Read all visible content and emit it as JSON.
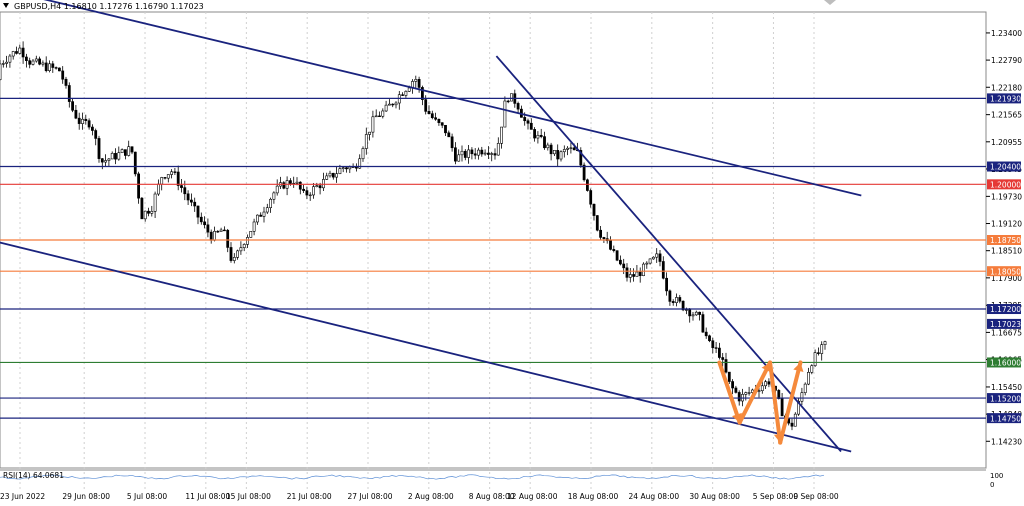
{
  "chart_data": {
    "type": "candlestick",
    "title": "GBPUSD,H4  1.16810 1.17276 1.16790 1.17023",
    "symbol": "GBPUSD",
    "timeframe": "H4",
    "ohlc": {
      "open": 1.1681,
      "high": 1.17276,
      "low": 1.1679,
      "close": 1.17023
    },
    "current_price_label": "1.17023",
    "ylim": [
      1.1363,
      1.2387
    ],
    "y_ticks": [
      "1.23400",
      "1.22790",
      "1.22180",
      "1.21565",
      "1.20955",
      "1.20345",
      "1.19730",
      "1.19120",
      "1.18510",
      "1.17900",
      "1.17285",
      "1.16675",
      "1.16065",
      "1.15450",
      "1.14840",
      "1.14230"
    ],
    "x_ticks": [
      "23 Jun 2022",
      "29 Jun 08:00",
      "5 Jul 08:00",
      "11 Jul 08:00",
      "15 Jul 08:00",
      "21 Jul 08:00",
      "27 Jul 08:00",
      "2 Aug 08:00",
      "8 Aug 08:00",
      "12 Aug 08:00",
      "18 Aug 08:00",
      "24 Aug 08:00",
      "30 Aug 08:00",
      "5 Sep 08:00",
      "9 Sep 08:00"
    ],
    "grid": true,
    "horizontal_levels": [
      {
        "label": "1.21930",
        "value": 1.2193,
        "color": "#1a237e"
      },
      {
        "label": "1.20400",
        "value": 1.204,
        "color": "#1a237e"
      },
      {
        "label": "1.20000",
        "value": 1.2,
        "color": "#e53935"
      },
      {
        "label": "1.18750",
        "value": 1.1875,
        "color": "#f57c3c"
      },
      {
        "label": "1.18050",
        "value": 1.1805,
        "color": "#f57c3c"
      },
      {
        "label": "1.17200",
        "value": 1.172,
        "color": "#1a237e"
      },
      {
        "label": "1.16000",
        "value": 1.16,
        "color": "#2e7d32"
      },
      {
        "label": "1.15200",
        "value": 1.152,
        "color": "#1a237e"
      },
      {
        "label": "1.14750",
        "value": 1.1475,
        "color": "#1a237e"
      }
    ],
    "trendlines": [
      {
        "from": {
          "date": "20 Jun 2022",
          "price": 1.2445
        },
        "to": {
          "date": "14 Sep 2022",
          "price": 1.1975
        }
      },
      {
        "from": {
          "date": "20 Jun 2022",
          "price": 1.1875
        },
        "to": {
          "date": "13 Sep 2022",
          "price": 1.14
        }
      },
      {
        "from": {
          "date": "9 Aug 2022",
          "price": 1.2288
        },
        "to": {
          "date": "12 Sep 2022",
          "price": 1.14
        }
      }
    ],
    "pattern_arrows": [
      {
        "date": "31 Aug 2022",
        "price": 1.16
      },
      {
        "date": "2 Sep 2022",
        "price": 1.1465
      },
      {
        "date": "5 Sep 2022",
        "price": 1.16
      },
      {
        "date": "6 Sep 2022",
        "price": 1.142
      },
      {
        "date": "8 Sep 2022",
        "price": 1.16
      }
    ],
    "close_path": [
      {
        "date": "20 Jun 2022",
        "price": 1.2235
      },
      {
        "date": "21 Jun 2022",
        "price": 1.227
      },
      {
        "date": "22 Jun 2022",
        "price": 1.229
      },
      {
        "date": "23 Jun 2022",
        "price": 1.2305
      },
      {
        "date": "24 Jun 2022",
        "price": 1.2275
      },
      {
        "date": "27 Jun 2022",
        "price": 1.2255
      },
      {
        "date": "28 Jun 2022",
        "price": 1.2175
      },
      {
        "date": "29 Jun 2022",
        "price": 1.2135
      },
      {
        "date": "30 Jun 2022",
        "price": 1.214
      },
      {
        "date": "1 Jul 2022",
        "price": 1.205
      },
      {
        "date": "4 Jul 2022",
        "price": 1.208
      },
      {
        "date": "5 Jul 2022",
        "price": 1.193
      },
      {
        "date": "6 Jul 2022",
        "price": 1.195
      },
      {
        "date": "7 Jul 2022",
        "price": 1.202
      },
      {
        "date": "8 Jul 2022",
        "price": 1.203
      },
      {
        "date": "11 Jul 2022",
        "price": 1.191
      },
      {
        "date": "12 Jul 2022",
        "price": 1.188
      },
      {
        "date": "13 Jul 2022",
        "price": 1.19
      },
      {
        "date": "14 Jul 2022",
        "price": 1.182
      },
      {
        "date": "15 Jul 2022",
        "price": 1.187
      },
      {
        "date": "18 Jul 2022",
        "price": 1.198
      },
      {
        "date": "19 Jul 2022",
        "price": 1.2
      },
      {
        "date": "20 Jul 2022",
        "price": 1.201
      },
      {
        "date": "21 Jul 2022",
        "price": 1.1975
      },
      {
        "date": "22 Jul 2022",
        "price": 1.199
      },
      {
        "date": "25 Jul 2022",
        "price": 1.204
      },
      {
        "date": "26 Jul 2022",
        "price": 1.2035
      },
      {
        "date": "27 Jul 2022",
        "price": 1.21
      },
      {
        "date": "28 Jul 2022",
        "price": 1.215
      },
      {
        "date": "29 Jul 2022",
        "price": 1.2165
      },
      {
        "date": "1 Aug 2022",
        "price": 1.224
      },
      {
        "date": "2 Aug 2022",
        "price": 1.217
      },
      {
        "date": "3 Aug 2022",
        "price": 1.214
      },
      {
        "date": "4 Aug 2022",
        "price": 1.212
      },
      {
        "date": "5 Aug 2022",
        "price": 1.206
      },
      {
        "date": "8 Aug 2022",
        "price": 1.208
      },
      {
        "date": "9 Aug 2022",
        "price": 1.207
      },
      {
        "date": "10 Aug 2022",
        "price": 1.22
      },
      {
        "date": "11 Aug 2022",
        "price": 1.2185
      },
      {
        "date": "12 Aug 2022",
        "price": 1.213
      },
      {
        "date": "15 Aug 2022",
        "price": 1.206
      },
      {
        "date": "16 Aug 2022",
        "price": 1.208
      },
      {
        "date": "17 Aug 2022",
        "price": 1.207
      },
      {
        "date": "18 Aug 2022",
        "price": 1.199
      },
      {
        "date": "19 Aug 2022",
        "price": 1.19
      },
      {
        "date": "22 Aug 2022",
        "price": 1.179
      },
      {
        "date": "23 Aug 2022",
        "price": 1.18
      },
      {
        "date": "24 Aug 2022",
        "price": 1.182
      },
      {
        "date": "25 Aug 2022",
        "price": 1.184
      },
      {
        "date": "26 Aug 2022",
        "price": 1.175
      },
      {
        "date": "29 Aug 2022",
        "price": 1.17
      },
      {
        "date": "30 Aug 2022",
        "price": 1.164
      },
      {
        "date": "31 Aug 2022",
        "price": 1.162
      },
      {
        "date": "1 Sep 2022",
        "price": 1.155
      },
      {
        "date": "2 Sep 2022",
        "price": 1.152
      },
      {
        "date": "5 Sep 2022",
        "price": 1.156
      },
      {
        "date": "6 Sep 2022",
        "price": 1.15
      },
      {
        "date": "7 Sep 2022",
        "price": 1.145
      },
      {
        "date": "8 Sep 2022",
        "price": 1.152
      },
      {
        "date": "9 Sep 2022",
        "price": 1.16
      },
      {
        "date": "12 Sep 2022",
        "price": 1.168
      },
      {
        "date": "13 Sep 2022",
        "price": 1.1702
      }
    ],
    "rsi": {
      "label": "RSI(14) 64.0681",
      "value": 64.0681,
      "axis_ticks": [
        "100",
        "0"
      ]
    }
  }
}
